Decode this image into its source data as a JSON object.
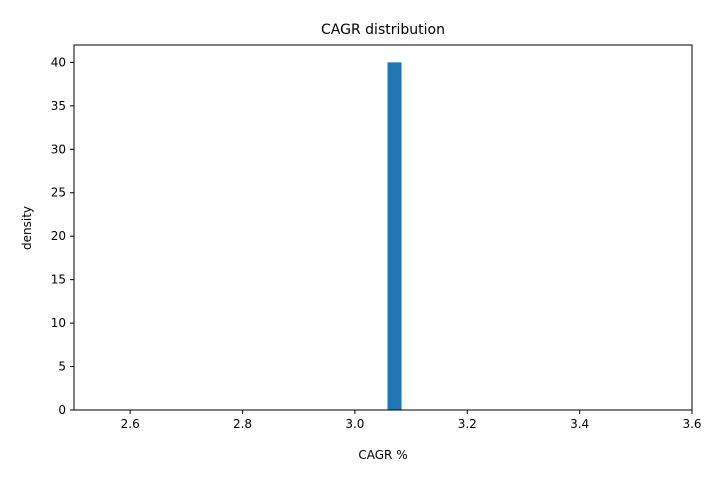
{
  "chart_data": {
    "type": "bar",
    "title": "CAGR distribution",
    "xlabel": "CAGR %",
    "ylabel": "density",
    "xlim": [
      2.5,
      3.6
    ],
    "ylim": [
      0,
      42
    ],
    "xticks": [
      2.6,
      2.8,
      3.0,
      3.2,
      3.4,
      3.6
    ],
    "xtick_labels": [
      "2.6",
      "2.8",
      "3.0",
      "3.2",
      "3.4",
      "3.6"
    ],
    "yticks": [
      0,
      5,
      10,
      15,
      20,
      25,
      30,
      35,
      40
    ],
    "ytick_labels": [
      "0",
      "5",
      "10",
      "15",
      "20",
      "25",
      "30",
      "35",
      "40"
    ],
    "grid": false,
    "bins": [
      {
        "x0": 3.058,
        "x1": 3.083,
        "value": 40
      }
    ],
    "bar_color": "#1f77b4"
  }
}
